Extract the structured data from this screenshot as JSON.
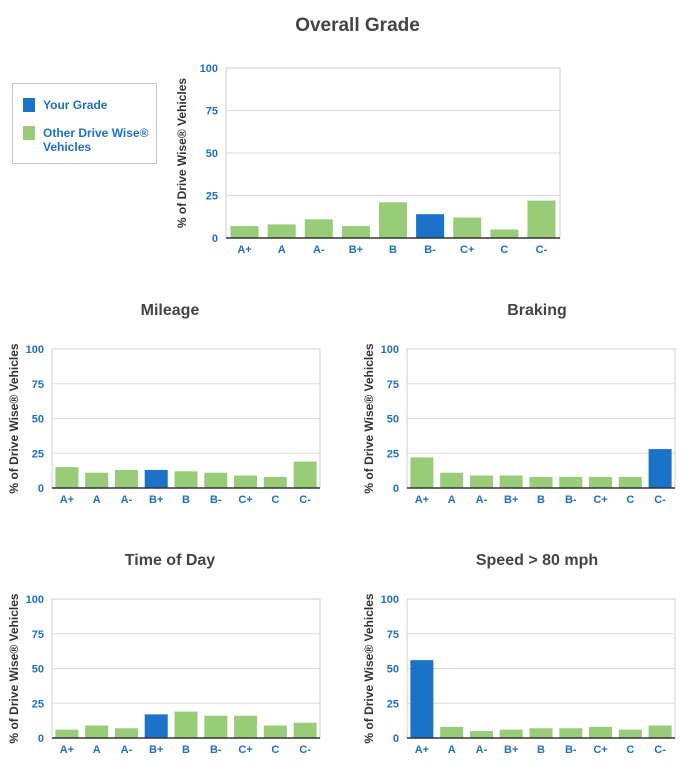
{
  "colors": {
    "your_grade": "#1a72c9",
    "other": "#98cc79",
    "axis_text": "#1f6fc8",
    "title": "#444444",
    "grid": "#dcdcdc"
  },
  "legend": {
    "your_grade_label": "Your Grade",
    "other_label": "Other Drive Wise® Vehicles"
  },
  "chart_data": [
    {
      "id": "overall",
      "type": "bar",
      "title": "Overall Grade",
      "ylabel": "% of Drive Wise® Vehicles",
      "ylim": [
        0,
        100
      ],
      "yticks": [
        0,
        25,
        50,
        75,
        100
      ],
      "categories": [
        "A+",
        "A",
        "A-",
        "B+",
        "B",
        "B-",
        "C+",
        "C",
        "C-"
      ],
      "values": [
        7,
        8,
        11,
        7,
        21,
        14,
        12,
        5,
        22
      ],
      "your_grade": "B-"
    },
    {
      "id": "mileage",
      "type": "bar",
      "title": "Mileage",
      "ylabel": "% of Drive Wise® Vehicles",
      "ylim": [
        0,
        100
      ],
      "yticks": [
        0,
        25,
        50,
        75,
        100
      ],
      "categories": [
        "A+",
        "A",
        "A-",
        "B+",
        "B",
        "B-",
        "C+",
        "C",
        "C-"
      ],
      "values": [
        15,
        11,
        13,
        13,
        12,
        11,
        9,
        8,
        19
      ],
      "your_grade": "B+"
    },
    {
      "id": "braking",
      "type": "bar",
      "title": "Braking",
      "ylabel": "% of Drive Wise® Vehicles",
      "ylim": [
        0,
        100
      ],
      "yticks": [
        0,
        25,
        50,
        75,
        100
      ],
      "categories": [
        "A+",
        "A",
        "A-",
        "B+",
        "B",
        "B-",
        "C+",
        "C",
        "C-"
      ],
      "values": [
        22,
        11,
        9,
        9,
        8,
        8,
        8,
        8,
        28
      ],
      "your_grade": "C-"
    },
    {
      "id": "time-of-day",
      "type": "bar",
      "title": "Time of Day",
      "ylabel": "% of Drive Wise® Vehicles",
      "ylim": [
        0,
        100
      ],
      "yticks": [
        0,
        25,
        50,
        75,
        100
      ],
      "categories": [
        "A+",
        "A",
        "A-",
        "B+",
        "B",
        "B-",
        "C+",
        "C",
        "C-"
      ],
      "values": [
        6,
        9,
        7,
        17,
        19,
        16,
        16,
        9,
        11
      ],
      "your_grade": "B+"
    },
    {
      "id": "speed",
      "type": "bar",
      "title": "Speed > 80 mph",
      "ylabel": "% of Drive Wise® Vehicles",
      "ylim": [
        0,
        100
      ],
      "yticks": [
        0,
        25,
        50,
        75,
        100
      ],
      "categories": [
        "A+",
        "A",
        "A-",
        "B+",
        "B",
        "B-",
        "C+",
        "C",
        "C-"
      ],
      "values": [
        56,
        8,
        5,
        6,
        7,
        7,
        8,
        6,
        9
      ],
      "your_grade": "A+"
    }
  ]
}
